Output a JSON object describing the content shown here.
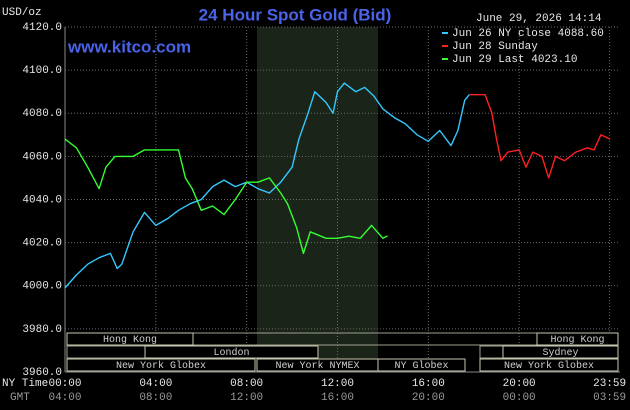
{
  "chart_data": {
    "type": "line",
    "title": "24 Hour Spot Gold (Bid)",
    "site": "www.kitco.com",
    "unit_label": "USD/oz",
    "timestamp": "June 29, 2026 14:14",
    "x_row_label": "NY Time",
    "x2_row_label": "GMT",
    "xlim": [
      0,
      24
    ],
    "xticks": [
      {
        "value": 0,
        "label": "00:00"
      },
      {
        "value": 4,
        "label": "04:00"
      },
      {
        "value": 8,
        "label": "08:00"
      },
      {
        "value": 12,
        "label": "12:00"
      },
      {
        "value": 16,
        "label": "16:00"
      },
      {
        "value": 20,
        "label": "20:00"
      },
      {
        "value": 23.983,
        "label": "23:59"
      }
    ],
    "gmt_labels": [
      "04:00",
      "08:00",
      "12:00",
      "16:00",
      "20:00",
      "00:00",
      "03:59"
    ],
    "ylim": [
      3960,
      4120
    ],
    "yticks": [
      {
        "value": 3960,
        "label": "3960.0"
      },
      {
        "value": 3980,
        "label": "3980.0"
      },
      {
        "value": 4000,
        "label": "4000.0"
      },
      {
        "value": 4020,
        "label": "4020.0"
      },
      {
        "value": 4040,
        "label": "4040.0"
      },
      {
        "value": 4060,
        "label": "4060.0"
      },
      {
        "value": 4080,
        "label": "4080.0"
      },
      {
        "value": 4100,
        "label": "4100.0"
      },
      {
        "value": 4120,
        "label": "4120.0"
      }
    ],
    "grid": true,
    "sessions": [
      "Hong Kong",
      "Hong Kong",
      "London",
      "Sydney",
      "New York Globex",
      "New York NYMEX",
      "NY Globex",
      "New York Globex"
    ],
    "series": [
      {
        "name": "Jun 26 NY close 4088.60",
        "color": "#33c8ff",
        "x": [
          0,
          0.5,
          1.0,
          1.5,
          2.0,
          2.3,
          2.5,
          3.0,
          3.5,
          4.0,
          4.5,
          5.0,
          5.5,
          6.0,
          6.5,
          7.0,
          7.5,
          8.0,
          8.5,
          9.0,
          9.5,
          10.0,
          10.3,
          10.7,
          11.0,
          11.5,
          11.8,
          12.0,
          12.3,
          12.8,
          13.2,
          13.6,
          14.0,
          14.5,
          15.0,
          15.5,
          16.0,
          16.5,
          17.0,
          17.3,
          17.6,
          17.8
        ],
        "values": [
          3999,
          4005,
          4010,
          4013,
          4015,
          4008,
          4010,
          4025,
          4034,
          4028,
          4031,
          4035,
          4038,
          4040,
          4046,
          4049,
          4046,
          4048,
          4045,
          4043,
          4048,
          4055,
          4068,
          4080,
          4090,
          4085,
          4080,
          4090,
          4094,
          4090,
          4092,
          4088,
          4082,
          4078,
          4075,
          4070,
          4067,
          4072,
          4065,
          4072,
          4086,
          4088.6
        ]
      },
      {
        "name": "Jun 28 Sunday",
        "color": "#ff2020",
        "x": [
          17.8,
          18.5,
          18.8,
          19.0,
          19.2,
          19.5,
          20.0,
          20.3,
          20.6,
          21.0,
          21.3,
          21.6,
          22.0,
          22.5,
          23.0,
          23.3,
          23.6,
          24.0
        ],
        "values": [
          4088.6,
          4088.6,
          4080,
          4068,
          4058,
          4062,
          4063,
          4055,
          4062,
          4060,
          4050,
          4060,
          4058,
          4062,
          4064,
          4063,
          4070,
          4068
        ]
      },
      {
        "name": "Jun 29 Last 4023.10",
        "color": "#33ff33",
        "x": [
          0,
          0.5,
          1.0,
          1.5,
          1.8,
          2.2,
          3.0,
          3.5,
          4.5,
          5.0,
          5.3,
          5.6,
          6.0,
          6.5,
          7.0,
          7.5,
          8.0,
          8.5,
          9.0,
          9.5,
          9.8,
          10.2,
          10.5,
          10.8,
          11.5,
          12.0,
          12.5,
          13.0,
          13.5,
          14.0,
          14.2
        ],
        "values": [
          4068,
          4064,
          4055,
          4045,
          4055,
          4060,
          4060,
          4063,
          4063,
          4063,
          4050,
          4045,
          4035,
          4037,
          4033,
          4040,
          4048,
          4048,
          4050,
          4043,
          4038,
          4027,
          4015,
          4025,
          4022,
          4022,
          4023,
          4022,
          4028,
          4022,
          4023.1
        ]
      }
    ]
  }
}
